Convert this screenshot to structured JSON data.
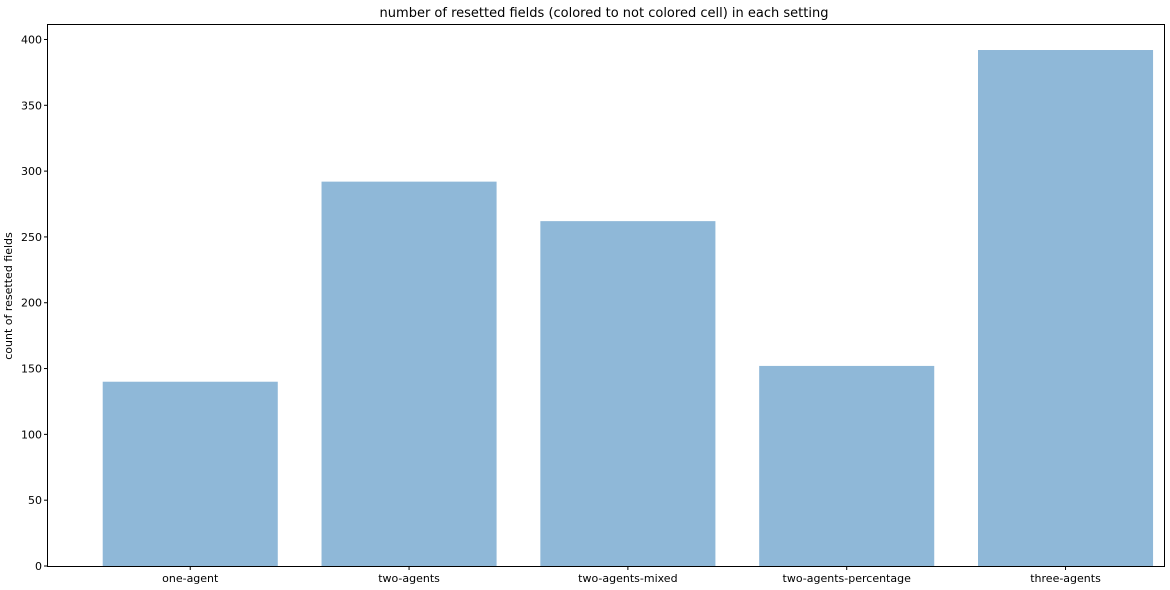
{
  "chart_data": {
    "type": "bar",
    "title": "number of resetted fields (colored to not colored cell) in each setting",
    "xlabel": "",
    "ylabel": "count of resetted fields",
    "categories": [
      "one-agent",
      "two-agents",
      "two-agents-mixed",
      "two-agents-percentage",
      "three-agents"
    ],
    "values": [
      140,
      292,
      262,
      152,
      392
    ],
    "ylim": [
      0,
      411
    ],
    "yticks": [
      0,
      50,
      100,
      150,
      200,
      250,
      300,
      350,
      400
    ],
    "bar_color": "#8fb8d8",
    "grid": false,
    "legend": "none"
  }
}
